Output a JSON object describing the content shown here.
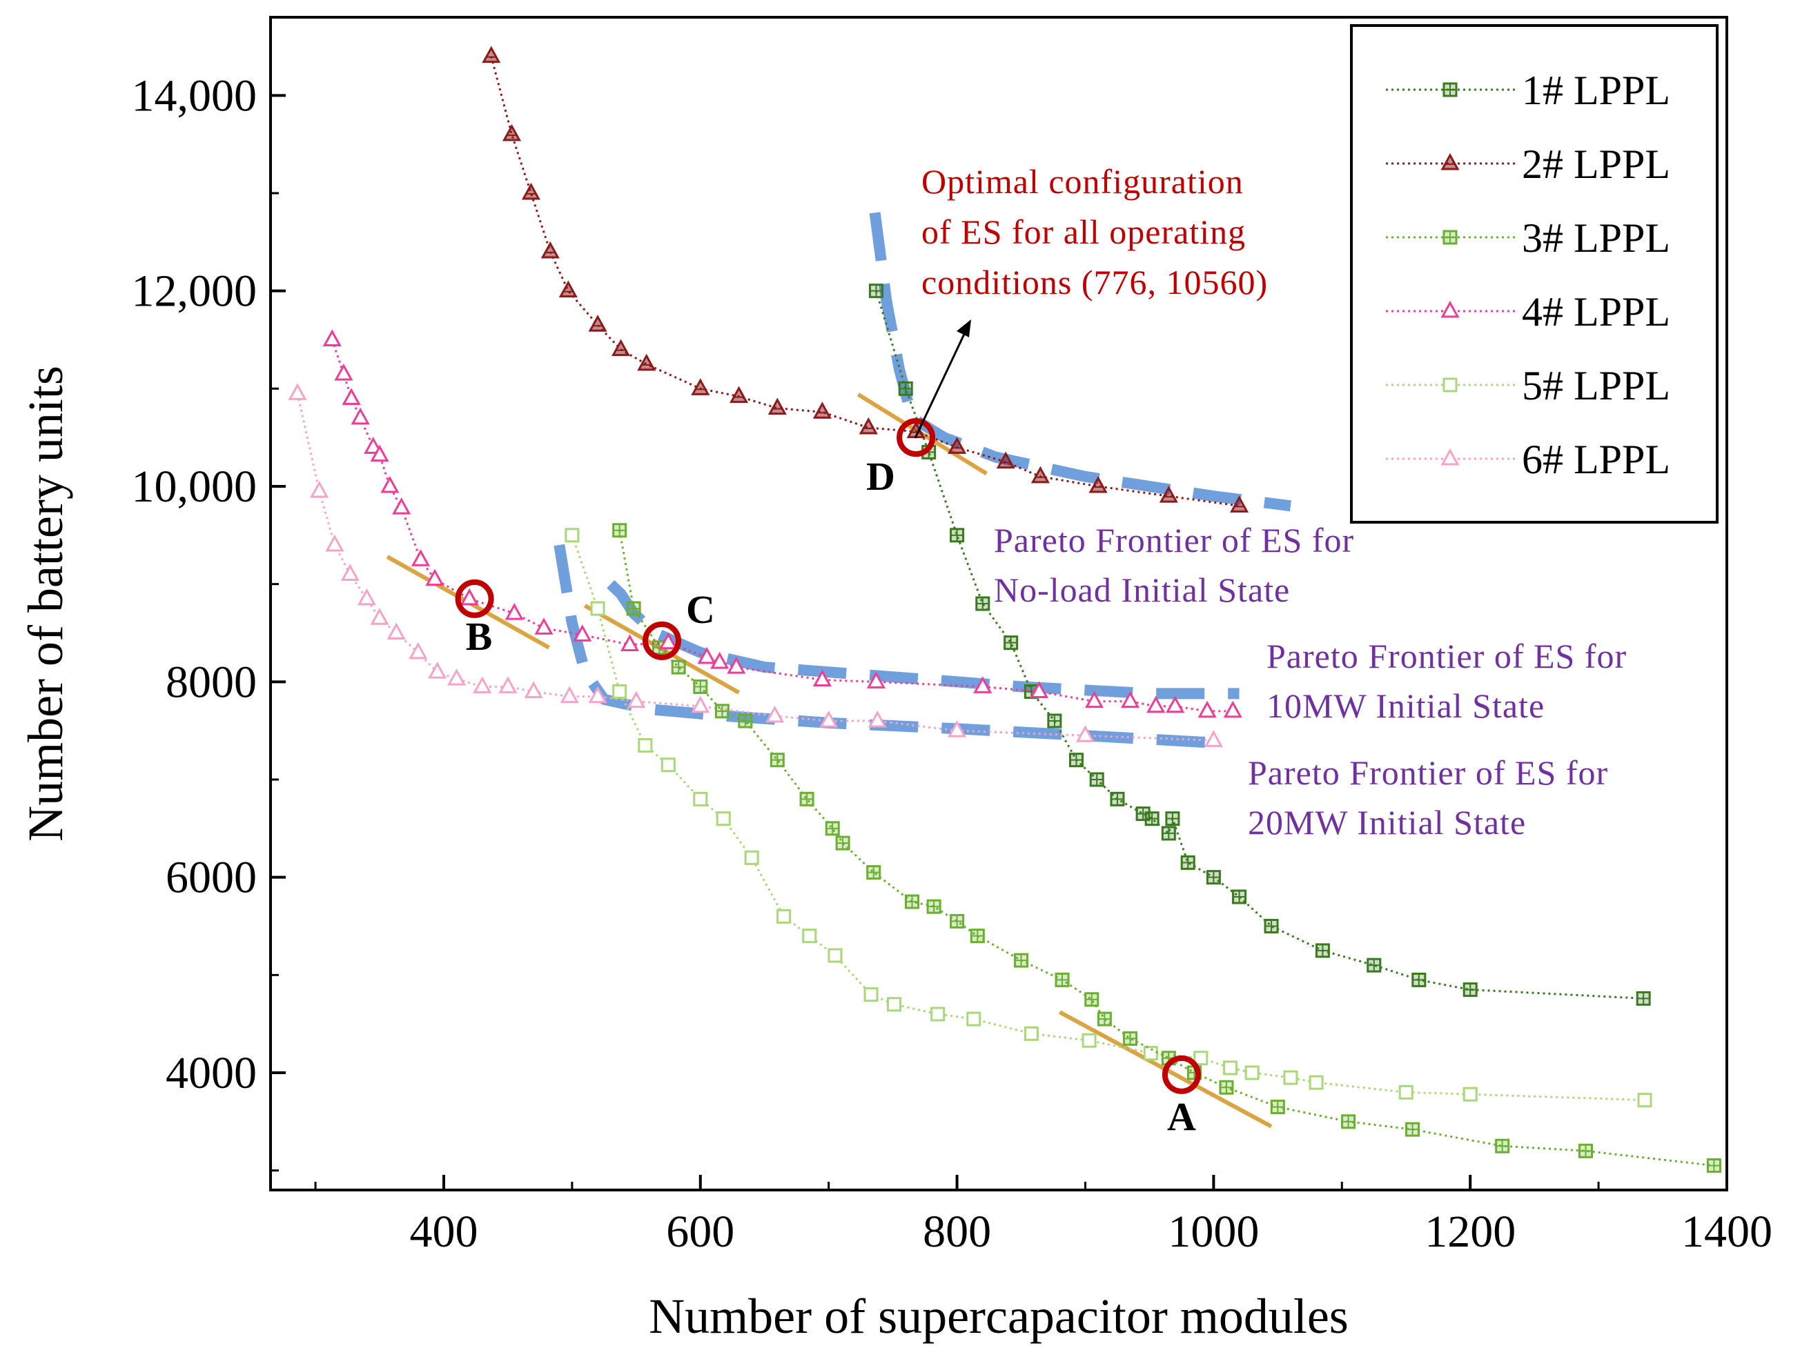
{
  "chart_data": {
    "type": "line",
    "title": "",
    "xlabel": "Number of supercapacitor modules",
    "ylabel": "Number of battery units",
    "xlim": [
      265,
      1400
    ],
    "ylim": [
      2800,
      14800
    ],
    "x_ticks": [
      400,
      600,
      800,
      1000,
      1200,
      1400
    ],
    "x_tick_labels": [
      "400",
      "600",
      "800",
      "1000",
      "1200",
      "1400"
    ],
    "y_ticks": [
      4000,
      6000,
      8000,
      10000,
      12000,
      14000
    ],
    "y_tick_labels": [
      "4000",
      "6000",
      "8000",
      "10,000",
      "12,000",
      "14,000"
    ],
    "grid": false,
    "legend_position": "top-right",
    "series": [
      {
        "name": "1# LPPL",
        "color": "#3a7a1e",
        "marker": "square-plus",
        "x": [
          737,
          760,
          778,
          800,
          820,
          842,
          858,
          876,
          893,
          909,
          925,
          945,
          952,
          965,
          968,
          980,
          1000,
          1020,
          1045,
          1085,
          1125,
          1160,
          1200,
          1335
        ],
        "y": [
          12000,
          11000,
          10350,
          9500,
          8800,
          8400,
          7900,
          7600,
          7200,
          7000,
          6800,
          6650,
          6600,
          6450,
          6600,
          6150,
          6000,
          5800,
          5500,
          5250,
          5100,
          4950,
          4850,
          4760
        ]
      },
      {
        "name": "2# LPPL",
        "color": "#8b1a1a",
        "marker": "triangle-filled",
        "x": [
          437,
          453,
          468,
          483,
          497,
          520,
          538,
          558,
          600,
          630,
          660,
          695,
          731,
          768,
          800,
          838,
          865,
          910,
          965,
          1020
        ],
        "y": [
          14400,
          13600,
          13000,
          12400,
          12000,
          11650,
          11400,
          11250,
          11000,
          10920,
          10800,
          10760,
          10600,
          10560,
          10400,
          10250,
          10100,
          10000,
          9900,
          9800
        ]
      },
      {
        "name": "3# LPPL",
        "color": "#6aaf2e",
        "marker": "square-plus",
        "x": [
          537,
          548,
          568,
          583,
          600,
          617,
          635,
          660,
          683,
          703,
          711,
          735,
          765,
          782,
          800,
          816,
          850,
          882,
          905,
          915,
          935,
          965,
          985,
          1010,
          1050,
          1105,
          1155,
          1225,
          1290,
          1390
        ],
        "y": [
          9550,
          8750,
          8350,
          8150,
          7950,
          7700,
          7600,
          7200,
          6800,
          6500,
          6350,
          6050,
          5750,
          5700,
          5550,
          5400,
          5150,
          4950,
          4750,
          4550,
          4350,
          4150,
          4000,
          3850,
          3650,
          3500,
          3420,
          3250,
          3200,
          3050
        ]
      },
      {
        "name": "4# LPPL",
        "color": "#f03c96",
        "marker": "triangle-open",
        "x": [
          313,
          322,
          328,
          335,
          345,
          350,
          358,
          367,
          382,
          393,
          420,
          455,
          478,
          508,
          545,
          575,
          605,
          615,
          628,
          695,
          737,
          820,
          864,
          907,
          935,
          955,
          970,
          995,
          1015
        ],
        "y": [
          11500,
          11150,
          10900,
          10700,
          10400,
          10320,
          10000,
          9780,
          9250,
          9050,
          8850,
          8700,
          8550,
          8480,
          8380,
          8400,
          8250,
          8200,
          8150,
          8020,
          8000,
          7950,
          7900,
          7800,
          7800,
          7750,
          7750,
          7700,
          7700
        ]
      },
      {
        "name": "5# LPPL",
        "color": "#a8d878",
        "marker": "square-open",
        "x": [
          500,
          520,
          537,
          557,
          575,
          600,
          618,
          640,
          665,
          685,
          705,
          733,
          751,
          785,
          813,
          858,
          903,
          951,
          990,
          1013,
          1030,
          1060,
          1080,
          1150,
          1200,
          1336
        ],
        "y": [
          9500,
          8750,
          7900,
          7350,
          7150,
          6800,
          6600,
          6200,
          5600,
          5400,
          5200,
          4800,
          4700,
          4600,
          4550,
          4400,
          4330,
          4200,
          4150,
          4050,
          4000,
          3950,
          3900,
          3800,
          3780,
          3720
        ]
      },
      {
        "name": "6# LPPL",
        "color": "#f5a3c8",
        "marker": "triangle-open",
        "x": [
          286,
          303,
          315,
          327,
          340,
          350,
          363,
          380,
          395,
          410,
          430,
          450,
          470,
          498,
          520,
          550,
          600,
          658,
          700,
          738,
          800,
          900,
          1000
        ],
        "y": [
          10950,
          9950,
          9400,
          9100,
          8850,
          8650,
          8500,
          8300,
          8100,
          8030,
          7950,
          7950,
          7900,
          7850,
          7850,
          7800,
          7750,
          7650,
          7600,
          7600,
          7500,
          7450,
          7400
        ]
      }
    ],
    "pareto_frontiers": [
      {
        "name": "No-load Initial State",
        "x": [
          736,
          745,
          755,
          765,
          790,
          830,
          900,
          1000,
          1060
        ],
        "y": [
          12800,
          11900,
          11200,
          10700,
          10500,
          10300,
          10100,
          9900,
          9800
        ]
      },
      {
        "name": "10MW Initial State",
        "x": [
          530,
          538,
          548,
          565,
          600,
          650,
          750,
          850,
          950,
          1020
        ],
        "y": [
          9000,
          8900,
          8700,
          8500,
          8300,
          8150,
          8050,
          7950,
          7880,
          7880
        ]
      },
      {
        "name": "20MW Initial State",
        "x": [
          490,
          500,
          510,
          525,
          560,
          620,
          700,
          800,
          900,
          995
        ],
        "y": [
          9400,
          8600,
          8100,
          7820,
          7720,
          7650,
          7580,
          7520,
          7450,
          7380
        ]
      }
    ],
    "highlighted_points": [
      {
        "label": "A",
        "x": 975,
        "y": 3980
      },
      {
        "label": "B",
        "x": 424,
        "y": 8850
      },
      {
        "label": "C",
        "x": 570,
        "y": 8420
      },
      {
        "label": "D",
        "x": 768,
        "y": 10500
      }
    ],
    "annotations": {
      "optimal": [
        "Optimal configuration",
        "of ES for all operating",
        "conditions (776, 10560)"
      ],
      "no_load": [
        "Pareto Frontier of ES for",
        "No-load Initial State"
      ],
      "mw10": [
        "Pareto Frontier of ES for",
        "10MW Initial State"
      ],
      "mw20": [
        "Pareto Frontier of ES for",
        "20MW Initial State"
      ]
    }
  },
  "colors": {
    "frontier": "#6f9fdc",
    "tangent": "#d9a441",
    "circle": "#c00000",
    "optimal_text": "#c00000",
    "pareto_text": "#7030a0"
  }
}
